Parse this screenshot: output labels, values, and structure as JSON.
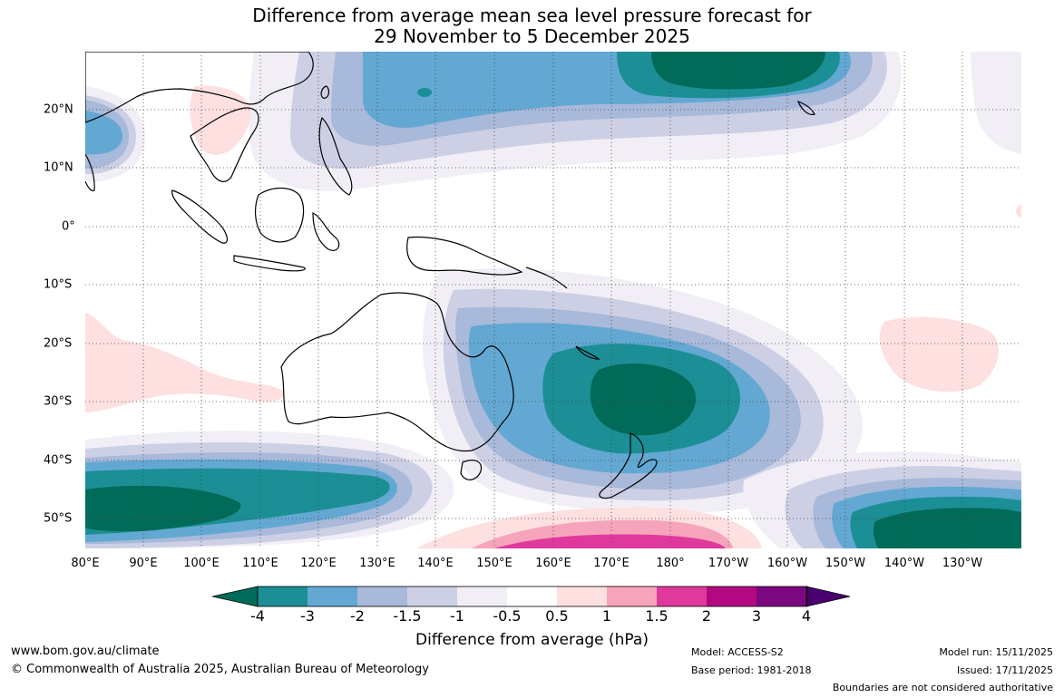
{
  "title": {
    "line1": "Difference from average mean sea level pressure forecast for",
    "line2": "29 November to 5 December 2025"
  },
  "map": {
    "lon_labels": [
      "80°E",
      "90°E",
      "100°E",
      "110°E",
      "120°E",
      "130°E",
      "140°E",
      "150°E",
      "160°E",
      "170°E",
      "180°",
      "170°W",
      "160°W",
      "150°W",
      "140°W",
      "130°W"
    ],
    "lat_labels": [
      "20°N",
      "10°N",
      "0°",
      "10°S",
      "20°S",
      "30°S",
      "40°S",
      "50°S"
    ],
    "lon_range": [
      80,
      240
    ],
    "lat_range": [
      -55,
      30
    ],
    "grid": "dotted",
    "regions": [
      {
        "name": "Southern Ocean negative band west",
        "anomaly_min": -4
      },
      {
        "name": "Tasman/South Pacific low anomaly",
        "anomaly_min": -4
      },
      {
        "name": "North Pacific low anomaly",
        "anomaly_min": -4
      },
      {
        "name": "Southeast Pacific low anomaly",
        "anomaly_min": -4
      },
      {
        "name": "Indian Ocean positive anomaly",
        "anomaly_max": 1
      },
      {
        "name": "Southwest Pacific positive anomaly",
        "anomaly_max": 1
      },
      {
        "name": "Southern high latitude positive anomaly",
        "anomaly_max": 2
      }
    ]
  },
  "colorbar": {
    "ticks": [
      "-4",
      "-3",
      "-2",
      "-1.5",
      "-1",
      "-0.5",
      "0.5",
      "1",
      "1.5",
      "2",
      "3",
      "4"
    ],
    "colors": [
      "#006b58",
      "#1b8f95",
      "#63a8d2",
      "#a8b9da",
      "#cdd0e5",
      "#f1eef6",
      "#ffffff",
      "#fde0df",
      "#f6a4bb",
      "#e0399d",
      "#b3087f",
      "#7c087f",
      "#4a0070"
    ],
    "label": "Difference from average (hPa)"
  },
  "footer": {
    "website": "www.bom.gov.au/climate",
    "copyright": "© Commonwealth of Australia 2025, Australian Bureau of Meteorology",
    "model": "Model: ACCESS-S2",
    "base_period": "Base period: 1981-2018",
    "model_run": "Model run: 15/11/2025",
    "issued": "Issued: 17/11/2025",
    "disclaimer": "Boundaries are not considered authoritative"
  }
}
